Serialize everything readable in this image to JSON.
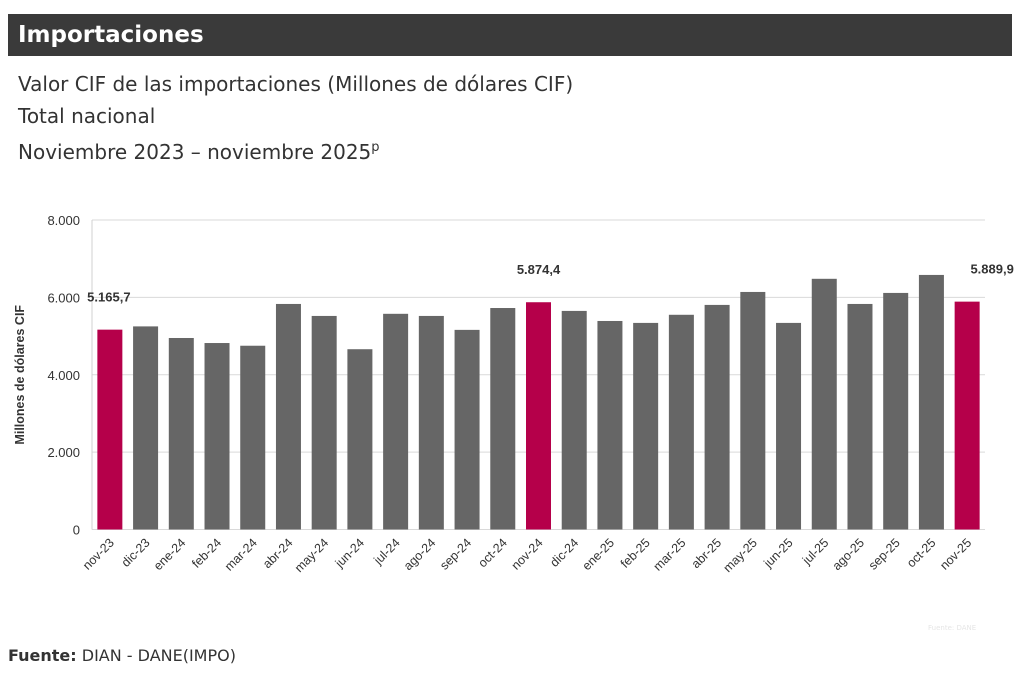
{
  "header": {
    "title": "Importaciones"
  },
  "titles": {
    "line1": "Valor CIF de las importaciones (Millones de dólares CIF)",
    "line2": "Total nacional",
    "line3": "Noviembre 2023 – noviembre 2025",
    "line3_sup": "p"
  },
  "source": {
    "label": "Fuente:",
    "text": " DIAN - DANE(IMPO)"
  },
  "credit": "Fuente: DANE",
  "chart_data": {
    "type": "bar",
    "ylabel": "Millones de dólares CIF",
    "ylim": [
      0,
      8000
    ],
    "yticks": [
      "0",
      "2.000",
      "4.000",
      "6.000",
      "8.000"
    ],
    "grid": true,
    "categories": [
      "nov-23",
      "dic-23",
      "ene-24",
      "feb-24",
      "mar-24",
      "abr-24",
      "may-24",
      "jun-24",
      "jul-24",
      "ago-24",
      "sep-24",
      "oct-24",
      "nov-24",
      "dic-24",
      "ene-25",
      "feb-25",
      "mar-25",
      "abr-25",
      "may-25",
      "jun-25",
      "jul-25",
      "ago-25",
      "sep-25",
      "oct-25",
      "nov-25"
    ],
    "values": [
      5165.7,
      5250,
      4950,
      4820,
      4750,
      5830,
      5520,
      4660,
      5575,
      5520,
      5160,
      5725,
      5874.4,
      5650,
      5390,
      5340,
      5550,
      5805,
      6140,
      5340,
      6480,
      5830,
      6115,
      6580,
      5889.9
    ],
    "highlighted": [
      "nov-23",
      "nov-24",
      "nov-25"
    ],
    "data_labels": {
      "nov-23": "5.165,7",
      "nov-24": "5.874,4",
      "nov-25": "5.889,9"
    },
    "colors": {
      "bar": "#666666",
      "highlight": "#b5004a"
    }
  }
}
